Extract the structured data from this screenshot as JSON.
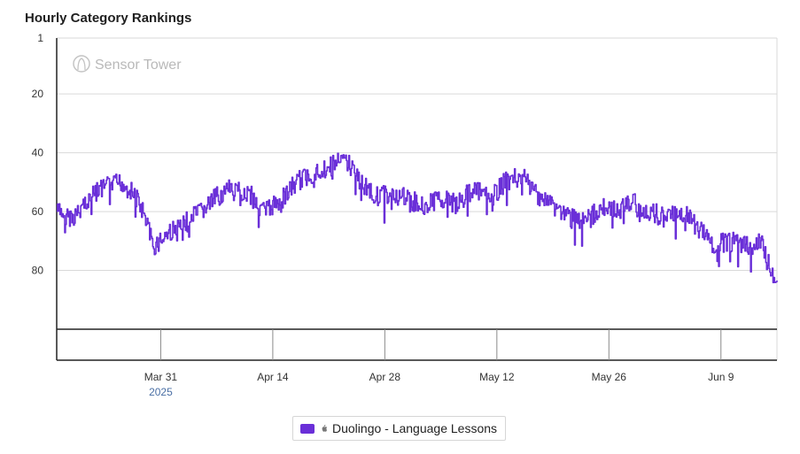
{
  "title": "Hourly Category Rankings",
  "watermark": "Sensor Tower",
  "colors": {
    "series": "#6a2fd8",
    "grid": "#d9d9d9",
    "axis": "#222222",
    "sub_label": "#4a6fa5"
  },
  "legend": {
    "label": "Duolingo - Language Lessons",
    "icon": "apple-icon"
  },
  "chart_data": {
    "type": "line",
    "title": "Hourly Category Rankings",
    "y_reversed": true,
    "ylim": [
      1,
      100
    ],
    "y_ticks": [
      1,
      20,
      40,
      60,
      80
    ],
    "x_ticks": [
      "Mar 31",
      "Apr 14",
      "Apr 28",
      "May 12",
      "May 26",
      "Jun 9"
    ],
    "x_year_label": "2025",
    "xlim": [
      "2025-03-18",
      "2025-06-16"
    ],
    "grid": true,
    "legend_position": "bottom-center",
    "series": [
      {
        "name": "Duolingo - Language Lessons",
        "x": [
          "2025-03-18",
          "2025-03-20",
          "2025-03-22",
          "2025-03-24",
          "2025-03-26",
          "2025-03-28",
          "2025-03-29",
          "2025-03-30",
          "2025-04-01",
          "2025-04-03",
          "2025-04-05",
          "2025-04-07",
          "2025-04-09",
          "2025-04-11",
          "2025-04-13",
          "2025-04-15",
          "2025-04-17",
          "2025-04-19",
          "2025-04-21",
          "2025-04-23",
          "2025-04-25",
          "2025-04-27",
          "2025-04-29",
          "2025-05-01",
          "2025-05-03",
          "2025-05-05",
          "2025-05-07",
          "2025-05-09",
          "2025-05-11",
          "2025-05-13",
          "2025-05-15",
          "2025-05-17",
          "2025-05-19",
          "2025-05-21",
          "2025-05-23",
          "2025-05-25",
          "2025-05-27",
          "2025-05-29",
          "2025-05-31",
          "2025-06-02",
          "2025-06-04",
          "2025-06-06",
          "2025-06-08",
          "2025-06-10",
          "2025-06-12",
          "2025-06-14",
          "2025-06-15",
          "2025-06-16"
        ],
        "y": [
          60,
          62,
          55,
          52,
          50,
          55,
          62,
          72,
          67,
          64,
          60,
          55,
          52,
          54,
          60,
          56,
          50,
          47,
          45,
          42,
          50,
          55,
          54,
          56,
          58,
          55,
          58,
          52,
          56,
          50,
          48,
          54,
          58,
          62,
          64,
          58,
          60,
          57,
          60,
          62,
          60,
          65,
          72,
          70,
          72,
          70,
          78,
          84
        ]
      }
    ]
  }
}
